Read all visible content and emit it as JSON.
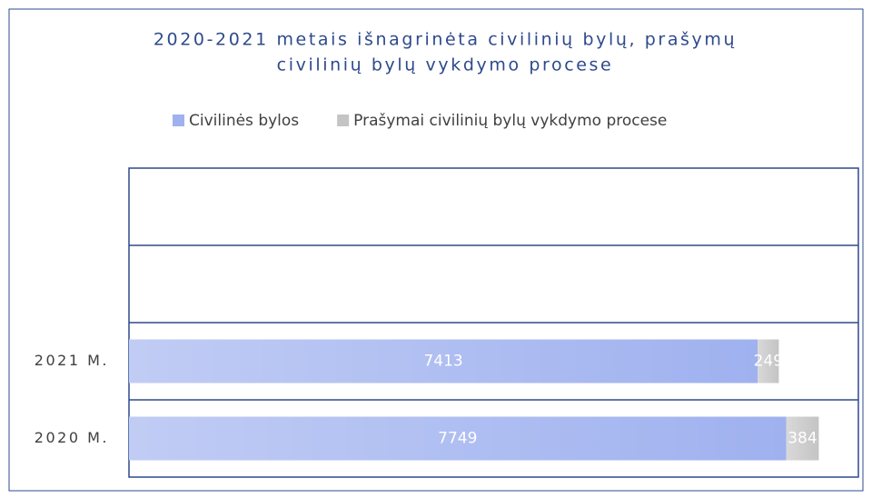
{
  "chart_data": {
    "type": "stacked-bar-horizontal",
    "title": [
      "2020-2021 metais išnagrinėta civilinių bylų, prašymų",
      "civilinių bylų vykdymo procese"
    ],
    "categories": [
      null,
      null,
      "2021 M.",
      "2020 M."
    ],
    "series": [
      {
        "name": "Civilinės bylos",
        "color": "#9fb1ef",
        "values": [
          null,
          null,
          7413,
          7749
        ]
      },
      {
        "name": "Prašymai civilinių bylų vykdymo procese",
        "color": "#c4c4c4",
        "values": [
          null,
          null,
          249,
          384
        ]
      }
    ],
    "xlim": [
      0,
      8600
    ],
    "legend": "top"
  }
}
